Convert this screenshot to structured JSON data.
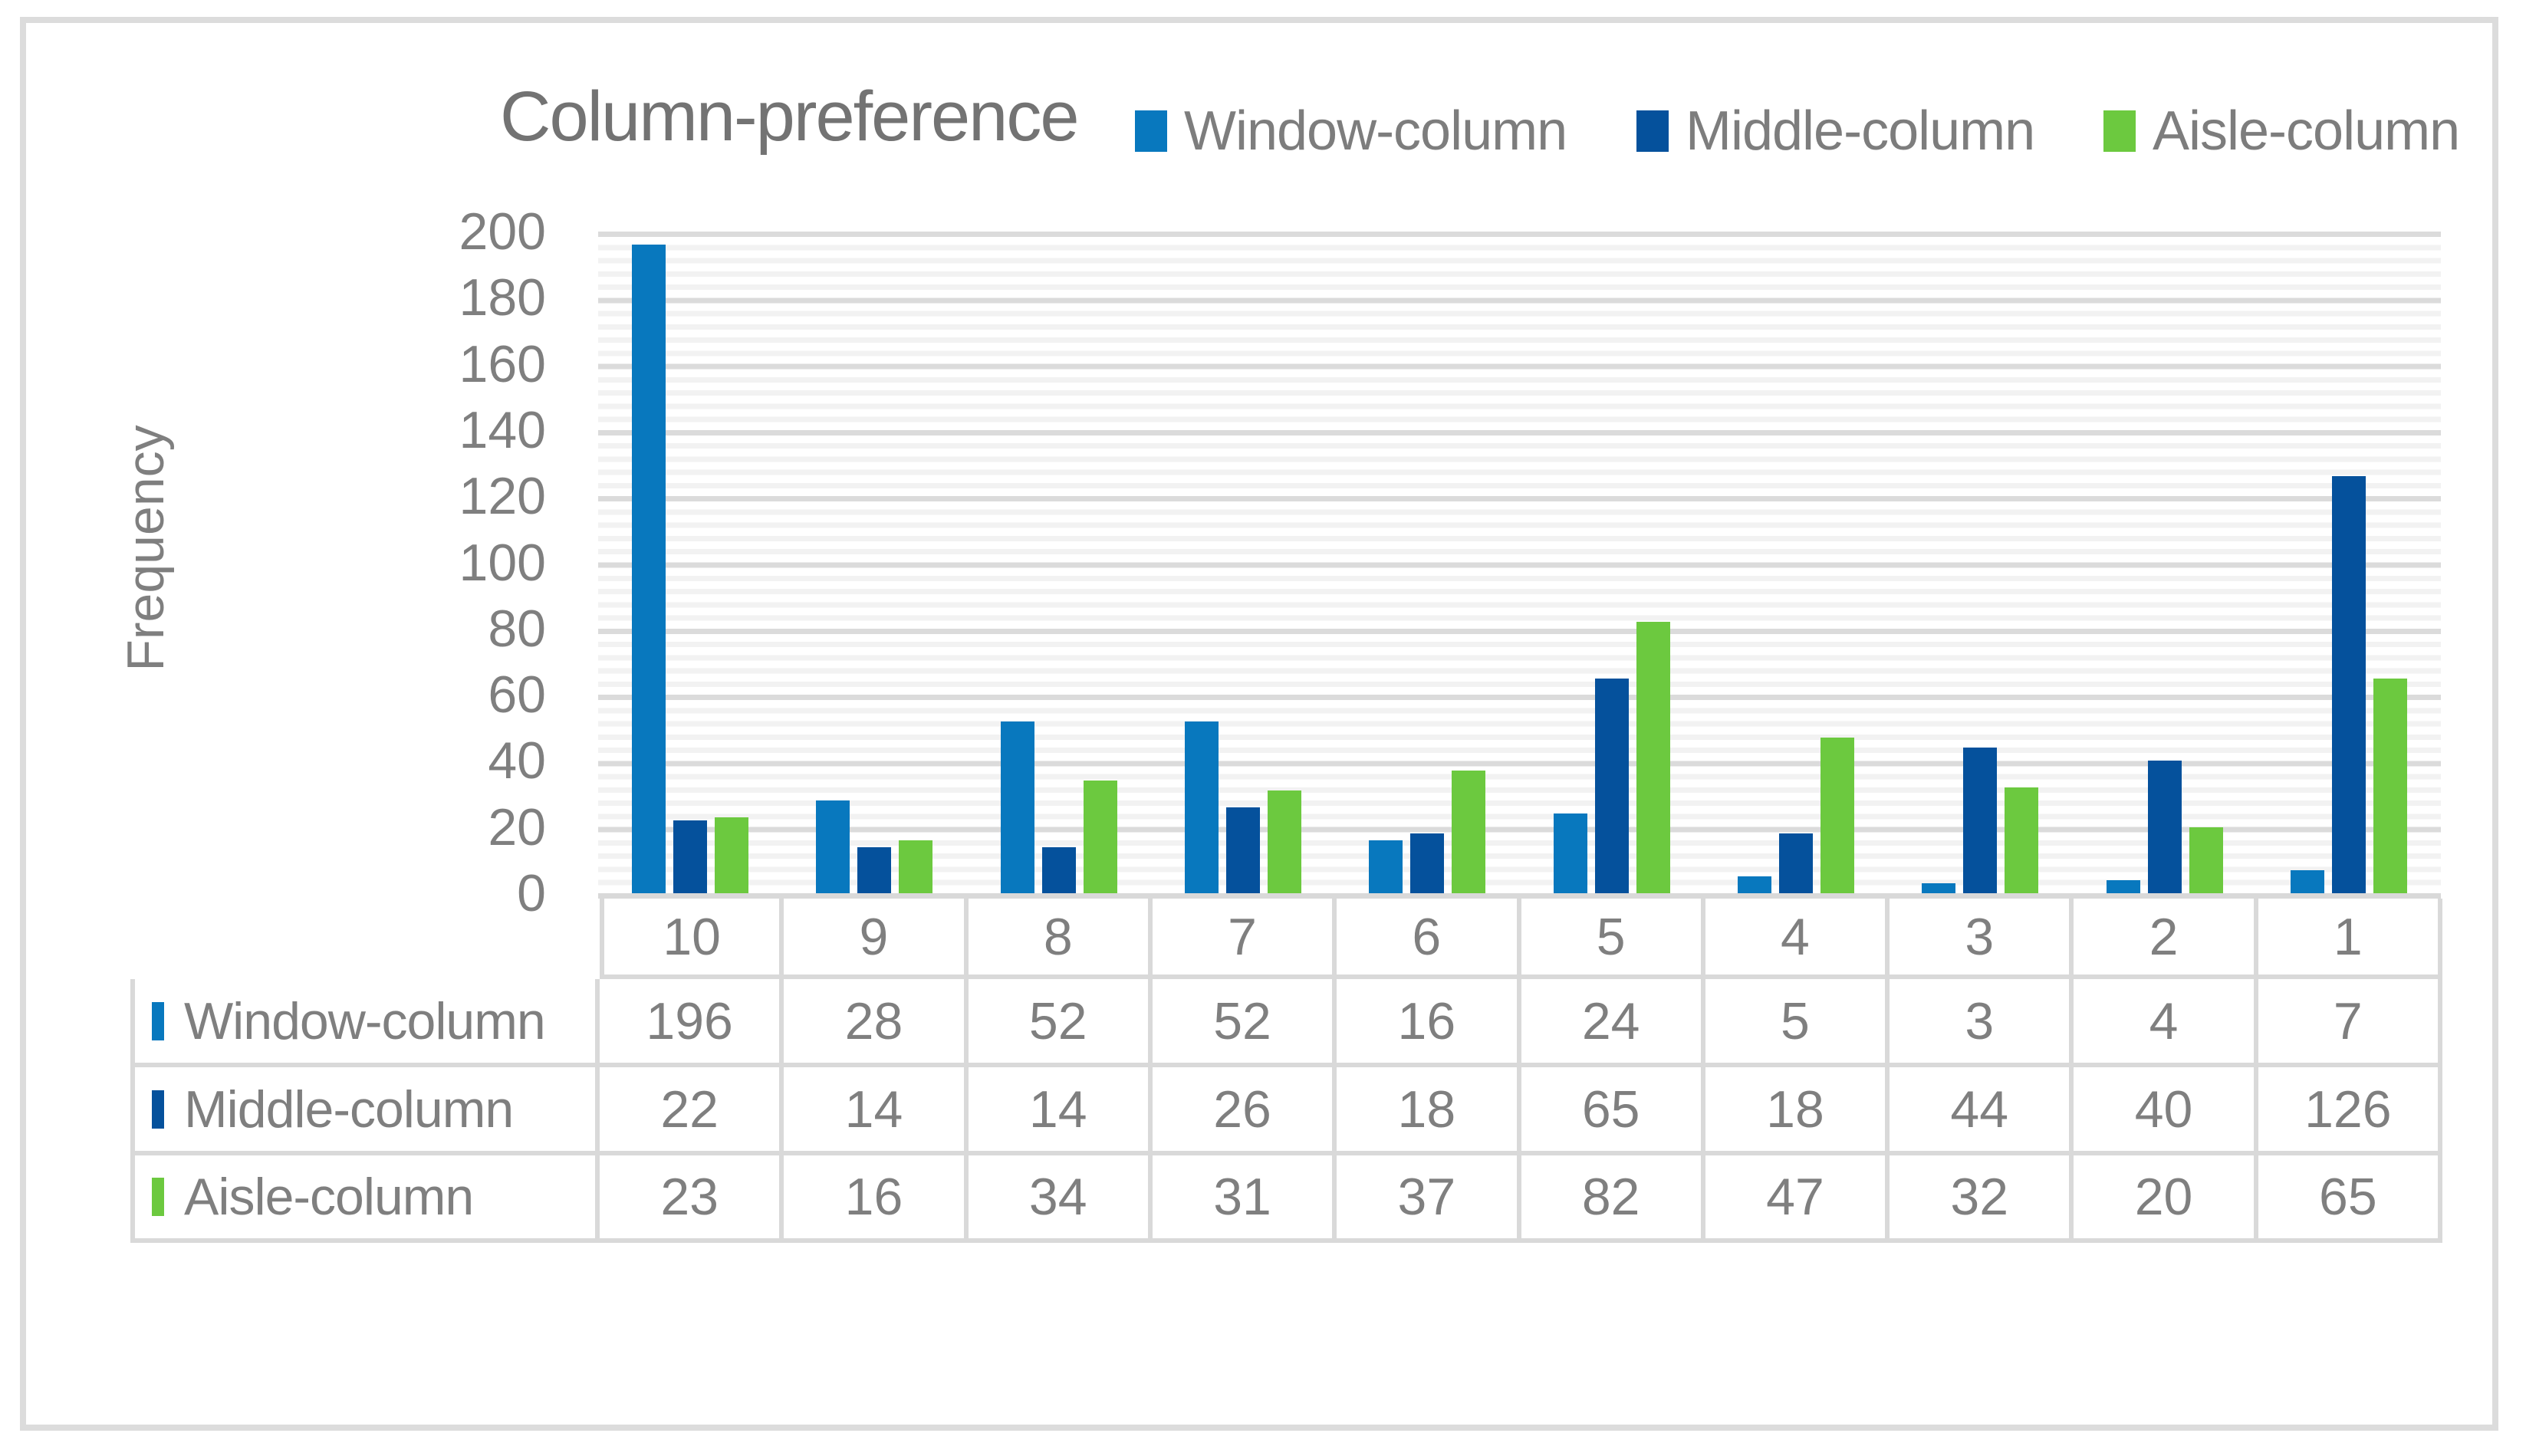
{
  "figure": {
    "title": "Column-preference",
    "y_axis_title": "Frequency"
  },
  "chart_data": {
    "type": "bar",
    "title": "Column-preference",
    "xlabel": "",
    "ylabel": "Frequency",
    "categories": [
      "10",
      "9",
      "8",
      "7",
      "6",
      "5",
      "4",
      "3",
      "2",
      "1"
    ],
    "series": [
      {
        "name": "Window-column",
        "color": "#0878be",
        "values": [
          196,
          28,
          52,
          52,
          16,
          24,
          5,
          3,
          4,
          7
        ]
      },
      {
        "name": "Middle-column",
        "color": "#05519c",
        "values": [
          22,
          14,
          14,
          26,
          18,
          65,
          18,
          44,
          40,
          126
        ]
      },
      {
        "name": "Aisle-column",
        "color": "#6cc93f",
        "values": [
          23,
          16,
          34,
          31,
          37,
          82,
          47,
          32,
          20,
          65
        ]
      }
    ],
    "ylim": [
      0,
      200
    ],
    "y_ticks": [
      200,
      180,
      160,
      140,
      120,
      100,
      80,
      60,
      40,
      20,
      0
    ],
    "y_major_unit": 20,
    "y_minor_unit": 4,
    "grid": true,
    "legend_position": "top-right",
    "data_table_shown": true
  }
}
